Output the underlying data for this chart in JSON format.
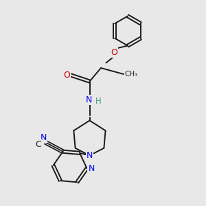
{
  "background_color": "#e8e8e8",
  "bond_color": "#1a1a1a",
  "atom_colors": {
    "N": "#0000ee",
    "O": "#cc0000",
    "C": "#1a1a1a",
    "H": "#4a9a8a"
  },
  "figsize": [
    3.0,
    3.0
  ],
  "dpi": 100,
  "xlim": [
    0,
    10
  ],
  "ylim": [
    0,
    10
  ]
}
